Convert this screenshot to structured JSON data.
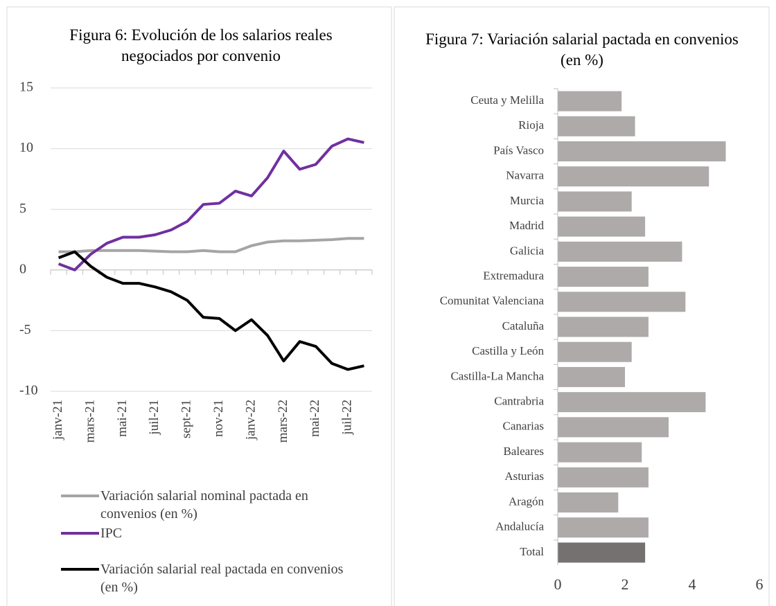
{
  "chart_data": [
    {
      "type": "line",
      "title": "Figura 6: Evolución de los salarios reales negociados por convenio",
      "categories": [
        "janv-21",
        null,
        "mars-21",
        null,
        "mai-21",
        null,
        "juil-21",
        null,
        "sept-21",
        null,
        "nov-21",
        null,
        "janv-22",
        null,
        "mars-22",
        null,
        "mai-22",
        null,
        "juil-22",
        null
      ],
      "series": [
        {
          "name": "Variación salarial nominal pactada en convenios (en %)",
          "color": "#a5a5a5",
          "values": [
            1.5,
            1.5,
            1.6,
            1.6,
            1.6,
            1.6,
            1.55,
            1.5,
            1.5,
            1.6,
            1.5,
            1.5,
            2.0,
            2.3,
            2.4,
            2.4,
            2.45,
            2.5,
            2.6,
            2.6
          ]
        },
        {
          "name": "IPC",
          "color": "#7030a0",
          "values": [
            0.5,
            0,
            1.3,
            2.2,
            2.7,
            2.7,
            2.9,
            3.3,
            4.0,
            5.4,
            5.5,
            6.5,
            6.1,
            7.6,
            9.8,
            8.3,
            8.7,
            10.2,
            10.8,
            10.5
          ]
        },
        {
          "name": "Variación salarial real pactada en convenios (en %)",
          "color": "#000000",
          "values": [
            1.0,
            1.5,
            0.3,
            -0.6,
            -1.1,
            -1.1,
            -1.4,
            -1.8,
            -2.5,
            -3.9,
            -4.0,
            -5.0,
            -4.1,
            -5.4,
            -7.5,
            -5.9,
            -6.3,
            -7.7,
            -8.2,
            -7.9
          ]
        }
      ],
      "ylim": [
        -10,
        15
      ],
      "yticks": [
        -10,
        -5,
        0,
        5,
        10,
        15
      ],
      "grid": true
    },
    {
      "type": "hbar",
      "title": "Figura 7: Variación salarial pactada en convenios (en %)",
      "categories": [
        "Ceuta y Melilla",
        "Rioja",
        "País Vasco",
        "Navarra",
        "Murcia",
        "Madrid",
        "Galicia",
        "Extremadura",
        "Comunitat Valenciana",
        "Cataluña",
        "Castilla y León",
        "Castilla-La Mancha",
        "Cantrabria",
        "Canarias",
        "Baleares",
        "Asturias",
        "Aragón",
        "Andalucía",
        "Total"
      ],
      "values": [
        1.9,
        2.3,
        5.0,
        4.5,
        2.2,
        2.6,
        3.7,
        2.7,
        3.8,
        2.7,
        2.2,
        2.0,
        4.4,
        3.3,
        2.5,
        2.7,
        1.8,
        2.7,
        2.6
      ],
      "colors": [
        "#aeaaaa",
        "#aeaaaa",
        "#aeaaaa",
        "#aeaaaa",
        "#aeaaaa",
        "#aeaaaa",
        "#aeaaaa",
        "#aeaaaa",
        "#aeaaaa",
        "#aeaaaa",
        "#aeaaaa",
        "#aeaaaa",
        "#aeaaaa",
        "#aeaaaa",
        "#aeaaaa",
        "#aeaaaa",
        "#aeaaaa",
        "#aeaaaa",
        "#767171"
      ],
      "xlim": [
        0,
        6
      ],
      "xticks": [
        0,
        2,
        4,
        6
      ],
      "grid": false
    }
  ]
}
